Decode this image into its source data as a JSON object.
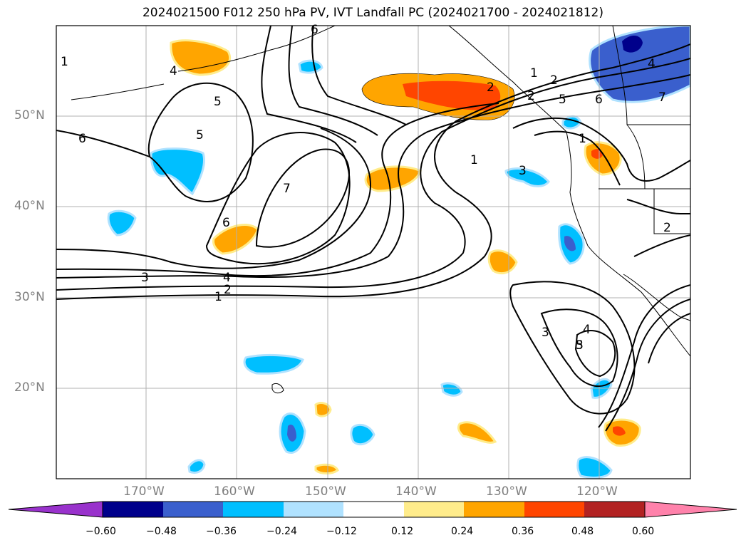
{
  "title": "2024021500 F012 250 hPa PV, IVT Landfall PC (2024021700 - 2024021812)",
  "lat_labels": [
    "50°N",
    "40°N",
    "30°N",
    "20°N"
  ],
  "lon_labels": [
    "170°W",
    "160°W",
    "150°W",
    "140°W",
    "130°W",
    "120°W"
  ],
  "colorbar": {
    "ticks": [
      "−0.60",
      "−0.48",
      "−0.36",
      "−0.24",
      "−0.12",
      "0.12",
      "0.24",
      "0.36",
      "0.48",
      "0.60"
    ],
    "colors": [
      "#9932cc",
      "#00008b",
      "#3a5fcd",
      "#00bfff",
      "#b0e2ff",
      "#ffffff",
      "#ffec8b",
      "#ffa500",
      "#ff4500",
      "#b22222",
      "#ff82ab"
    ]
  },
  "contour_labels": [
    "1",
    "2",
    "3",
    "4",
    "5",
    "6",
    "7",
    "6",
    "5",
    "4",
    "3",
    "2",
    "1",
    "1",
    "2",
    "4",
    "5",
    "6",
    "7",
    "1",
    "3",
    "1",
    "2",
    "3",
    "4",
    "5",
    "6",
    "2"
  ],
  "map": {
    "lat_range": [
      10,
      60
    ],
    "lon_range": [
      -180,
      -110
    ],
    "variables": [
      "250 hPa PV",
      "IVT Landfall PC"
    ],
    "init": "2024021500",
    "lead": "F012",
    "valid_period": "2024021700 - 2024021812"
  }
}
